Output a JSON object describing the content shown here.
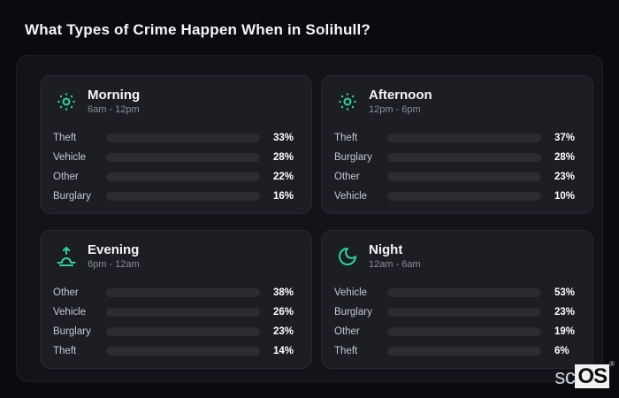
{
  "header": {
    "title": "What Types of Crime Happen When in Solihull?"
  },
  "brand": {
    "prefix": "sc",
    "suffix": "OS",
    "registered": "®"
  },
  "colors": {
    "theft": "#a15ef2",
    "vehicle": "#3b82f6",
    "other": "#64748b",
    "burglary": "#e2711d",
    "icon_accent": "#2ed3a0",
    "bar_track": "#2a2c32"
  },
  "chart_data": [
    {
      "type": "bar",
      "orientation": "horizontal",
      "period": "Morning",
      "time_range": "6am - 12pm",
      "icon": "sun-icon",
      "unit": "%",
      "xlim": [
        0,
        100
      ],
      "rows": [
        {
          "label": "Theft",
          "value": 33,
          "display": "33%",
          "color": "theft"
        },
        {
          "label": "Vehicle",
          "value": 28,
          "display": "28%",
          "color": "vehicle"
        },
        {
          "label": "Other",
          "value": 22,
          "display": "22%",
          "color": "other"
        },
        {
          "label": "Burglary",
          "value": 16,
          "display": "16%",
          "color": "burglary"
        }
      ]
    },
    {
      "type": "bar",
      "orientation": "horizontal",
      "period": "Afternoon",
      "time_range": "12pm - 6pm",
      "icon": "sun-icon",
      "unit": "%",
      "xlim": [
        0,
        100
      ],
      "rows": [
        {
          "label": "Theft",
          "value": 37,
          "display": "37%",
          "color": "theft"
        },
        {
          "label": "Burglary",
          "value": 28,
          "display": "28%",
          "color": "burglary"
        },
        {
          "label": "Other",
          "value": 23,
          "display": "23%",
          "color": "other"
        },
        {
          "label": "Vehicle",
          "value": 10,
          "display": "10%",
          "color": "vehicle"
        }
      ]
    },
    {
      "type": "bar",
      "orientation": "horizontal",
      "period": "Evening",
      "time_range": "6pm - 12am",
      "icon": "sunrise-icon",
      "unit": "%",
      "xlim": [
        0,
        100
      ],
      "rows": [
        {
          "label": "Other",
          "value": 38,
          "display": "38%",
          "color": "other"
        },
        {
          "label": "Vehicle",
          "value": 26,
          "display": "26%",
          "color": "vehicle"
        },
        {
          "label": "Burglary",
          "value": 23,
          "display": "23%",
          "color": "burglary"
        },
        {
          "label": "Theft",
          "value": 14,
          "display": "14%",
          "color": "theft"
        }
      ]
    },
    {
      "type": "bar",
      "orientation": "horizontal",
      "period": "Night",
      "time_range": "12am - 6am",
      "icon": "moon-icon",
      "unit": "%",
      "xlim": [
        0,
        100
      ],
      "rows": [
        {
          "label": "Vehicle",
          "value": 53,
          "display": "53%",
          "color": "vehicle"
        },
        {
          "label": "Burglary",
          "value": 23,
          "display": "23%",
          "color": "burglary"
        },
        {
          "label": "Other",
          "value": 19,
          "display": "19%",
          "color": "other"
        },
        {
          "label": "Theft",
          "value": 6,
          "display": "6%",
          "color": "theft"
        }
      ]
    }
  ]
}
